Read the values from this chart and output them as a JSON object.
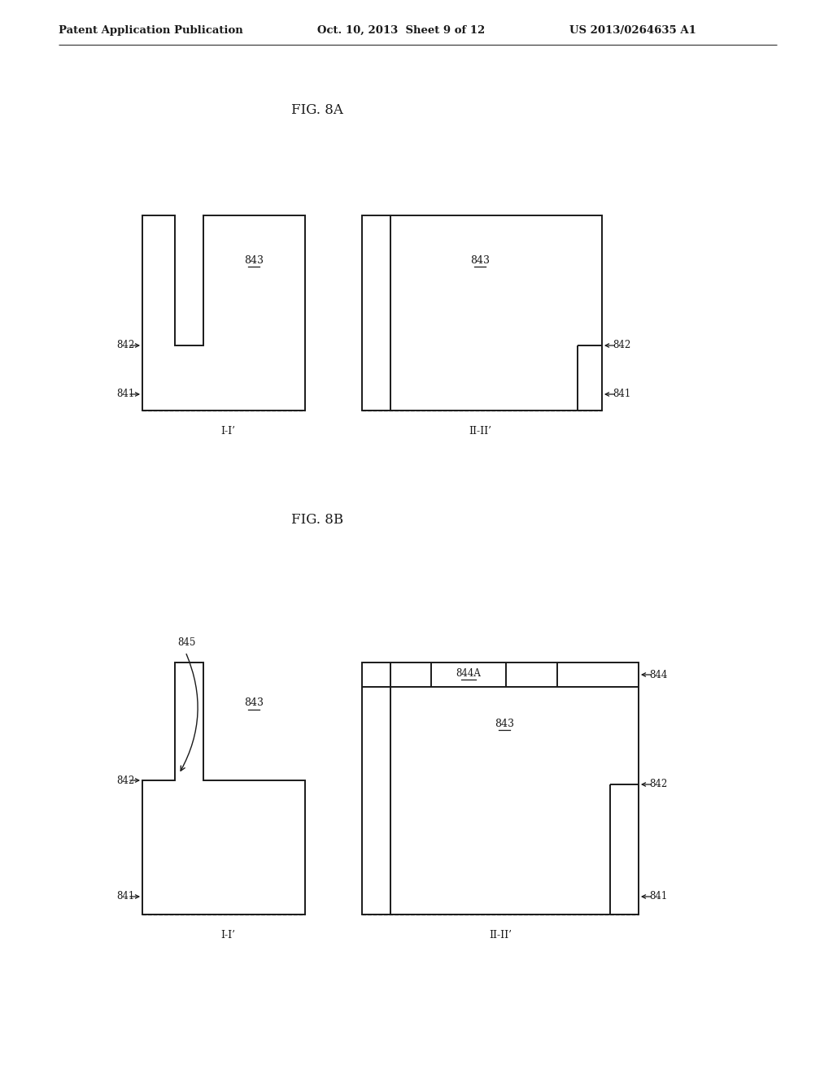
{
  "bg_color": "#ffffff",
  "header_left": "Patent Application Publication",
  "header_mid": "Oct. 10, 2013  Sheet 9 of 12",
  "header_right": "US 2013/0264635 A1",
  "fig8a_title": "FIG. 8A",
  "fig8b_title": "FIG. 8B",
  "label_843": "843",
  "label_842": "842",
  "label_841": "841",
  "label_844": "844",
  "label_844A": "844A",
  "label_845": "845",
  "label_I_I": "I-I’",
  "label_II_II": "II-II’",
  "line_color": "#1a1a1a",
  "line_width": 1.4,
  "text_color": "#1a1a1a",
  "font_size_header": 9.5,
  "font_size_label": 8.5,
  "font_size_fig": 12
}
